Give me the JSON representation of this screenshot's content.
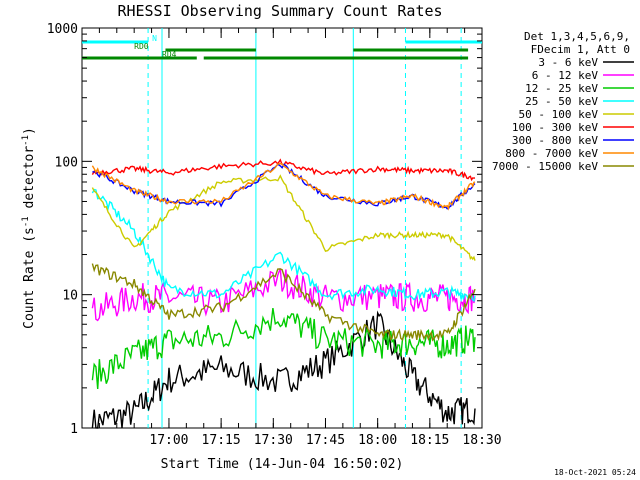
{
  "chart_data": {
    "type": "line",
    "title": "RHESSI Observing Summary Count Rates",
    "xlabel": "Start Time (14-Jun-04 16:50:02)",
    "ylabel": "Count Rate (s",
    "ylabel_sup": "-1",
    "ylabel_tail": " detector",
    "ylabel_tail_sup": "-1",
    "ylabel_end": ")",
    "footer": "18-Oct-2021 05:24",
    "y_scale": "log",
    "ylim": [
      1,
      1000
    ],
    "xlim_minutes": [
      -15,
      100
    ],
    "y_ticks": [
      {
        "v": 1,
        "label": "1"
      },
      {
        "v": 10,
        "label": "10"
      },
      {
        "v": 100,
        "label": "100"
      },
      {
        "v": 1000,
        "label": "1000"
      }
    ],
    "x_ticks": [
      {
        "t": 10,
        "label": "17:00"
      },
      {
        "t": 25,
        "label": "17:15"
      },
      {
        "t": 40,
        "label": "17:30"
      },
      {
        "t": 55,
        "label": "17:45"
      },
      {
        "t": 70,
        "label": "18:00"
      },
      {
        "t": 85,
        "label": "18:15"
      },
      {
        "t": 100,
        "label": "18:30"
      }
    ],
    "legend_header": [
      "Det 1,3,4,5,6,9,",
      "FDecim 1, Att 0"
    ],
    "series": [
      {
        "name": "3 - 6 keV",
        "color": "#000000",
        "values": [
          1.1,
          1.3,
          2.3,
          2.8,
          2.2,
          3.1,
          6,
          2.4,
          1.3,
          1.4
        ]
      },
      {
        "name": "6 - 12 keV",
        "color": "#ff00ff",
        "values": [
          7.5,
          9.5,
          9.5,
          8.6,
          13,
          9.4,
          9.7,
          9.5,
          9.4,
          9.5
        ]
      },
      {
        "name": "12 - 25 keV",
        "color": "#00cc00",
        "values": [
          2.4,
          3.5,
          4.5,
          4.8,
          7,
          4.6,
          4.2,
          4.4,
          4.2,
          4.8
        ]
      },
      {
        "name": "25 - 50 keV",
        "color": "#00ffff",
        "values": [
          62,
          30,
          11,
          10,
          20,
          10,
          11,
          10,
          10.5,
          9.8
        ]
      },
      {
        "name": "50 - 100 keV",
        "color": "#cccc00",
        "values": [
          62,
          22,
          42,
          70,
          75,
          22,
          28,
          28,
          28,
          18
        ]
      },
      {
        "name": "100 - 300 keV",
        "color": "#ff0000",
        "values": [
          82,
          88,
          82,
          92,
          98,
          80,
          88,
          85,
          85,
          75
        ]
      },
      {
        "name": "300 - 800 keV",
        "color": "#0000ff",
        "values": [
          85,
          60,
          50,
          48,
          95,
          55,
          48,
          55,
          45,
          68
        ]
      },
      {
        "name": "800 - 7000 keV",
        "color": "#ff8800",
        "values": [
          90,
          60,
          50,
          50,
          95,
          55,
          48,
          55,
          45,
          70
        ]
      },
      {
        "name": "7000 - 15000 keV",
        "color": "#888800",
        "values": [
          16,
          12,
          7,
          8,
          15,
          7,
          5,
          5,
          5,
          11
        ]
      }
    ],
    "x": [
      -12,
      0,
      10,
      25,
      42,
      55,
      70,
      80,
      90,
      98
    ],
    "flag_bars": [
      {
        "label": "N",
        "color": "#00ffff",
        "segments": [
          [
            -15,
            4
          ],
          [
            78,
            100
          ]
        ]
      },
      {
        "label": "RD0",
        "color": "#008800",
        "segments": [
          [
            9,
            35
          ],
          [
            63,
            96
          ]
        ]
      },
      {
        "label": "RD4",
        "color": "#008800",
        "segments": [
          [
            -15,
            18
          ],
          [
            20,
            96
          ]
        ]
      }
    ],
    "vertical_lines": [
      {
        "t": 4,
        "style": "dashed",
        "color": "#00ffff"
      },
      {
        "t": 8,
        "style": "solid",
        "color": "#00ffff"
      },
      {
        "t": 35,
        "style": "solid",
        "color": "#00ffff"
      },
      {
        "t": 63,
        "style": "solid",
        "color": "#00ffff"
      },
      {
        "t": 78,
        "style": "dashed",
        "color": "#00ffff"
      },
      {
        "t": 94,
        "style": "dashed",
        "color": "#00ffff"
      }
    ]
  }
}
